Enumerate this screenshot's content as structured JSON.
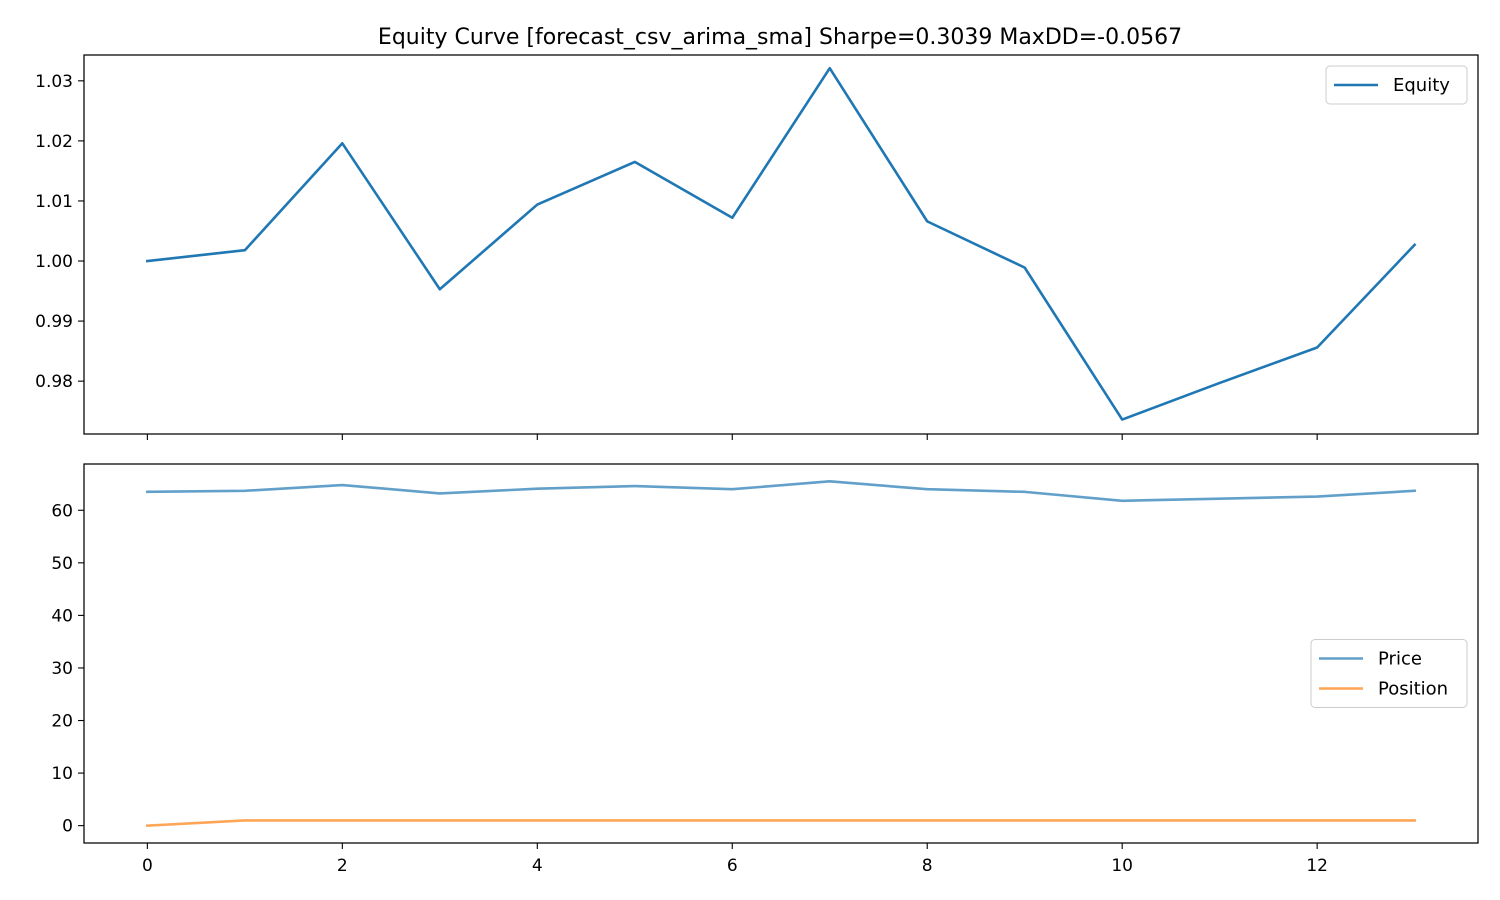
{
  "chart_data": [
    {
      "type": "line",
      "title": "Equity Curve [forecast_csv_arima_sma]  Sharpe=0.3039  MaxDD=-0.0567",
      "xlabel": "",
      "ylabel": "",
      "x": [
        0,
        1,
        2,
        3,
        4,
        5,
        6,
        7,
        8,
        9,
        10,
        11,
        12,
        13
      ],
      "xlim": [
        -0.65,
        13.65
      ],
      "ylim": [
        0.9712,
        1.0343
      ],
      "yticks": [
        0.98,
        0.99,
        1.0,
        1.01,
        1.02,
        1.03
      ],
      "ytick_labels": [
        "0.98",
        "0.99",
        "1.00",
        "1.01",
        "1.02",
        "1.03"
      ],
      "xticks": [
        0,
        2,
        4,
        6,
        8,
        10,
        12
      ],
      "xtick_labels_visible": false,
      "grid": false,
      "legend_position": "top-right",
      "series": [
        {
          "name": "Equity",
          "color": "#1f77b4",
          "alpha": 1.0,
          "values": [
            1.0,
            1.0018,
            1.0196,
            0.9953,
            1.0094,
            1.0165,
            1.0072,
            1.0321,
            1.0066,
            0.9989,
            0.9736,
            0.9797,
            0.9856,
            1.0027
          ]
        }
      ]
    },
    {
      "type": "line",
      "title": "",
      "xlabel": "",
      "ylabel": "",
      "x": [
        0,
        1,
        2,
        3,
        4,
        5,
        6,
        7,
        8,
        9,
        10,
        11,
        12,
        13
      ],
      "xlim": [
        -0.65,
        13.65
      ],
      "ylim": [
        -3.3,
        68.8
      ],
      "yticks": [
        0,
        10,
        20,
        30,
        40,
        50,
        60
      ],
      "ytick_labels": [
        "0",
        "10",
        "20",
        "30",
        "40",
        "50",
        "60"
      ],
      "xticks": [
        0,
        2,
        4,
        6,
        8,
        10,
        12
      ],
      "xtick_labels": [
        "0",
        "2",
        "4",
        "6",
        "8",
        "10",
        "12"
      ],
      "grid": false,
      "legend_position": "center-right",
      "series": [
        {
          "name": "Price",
          "color": "#1f77b4",
          "alpha": 0.7,
          "values": [
            63.5,
            63.7,
            64.8,
            63.2,
            64.1,
            64.6,
            64.0,
            65.5,
            64.0,
            63.5,
            61.8,
            62.2,
            62.6,
            63.7
          ]
        },
        {
          "name": "Position",
          "color": "#ff7f0e",
          "alpha": 0.7,
          "values": [
            0,
            1,
            1,
            1,
            1,
            1,
            1,
            1,
            1,
            1,
            1,
            1,
            1,
            1
          ]
        }
      ]
    }
  ]
}
